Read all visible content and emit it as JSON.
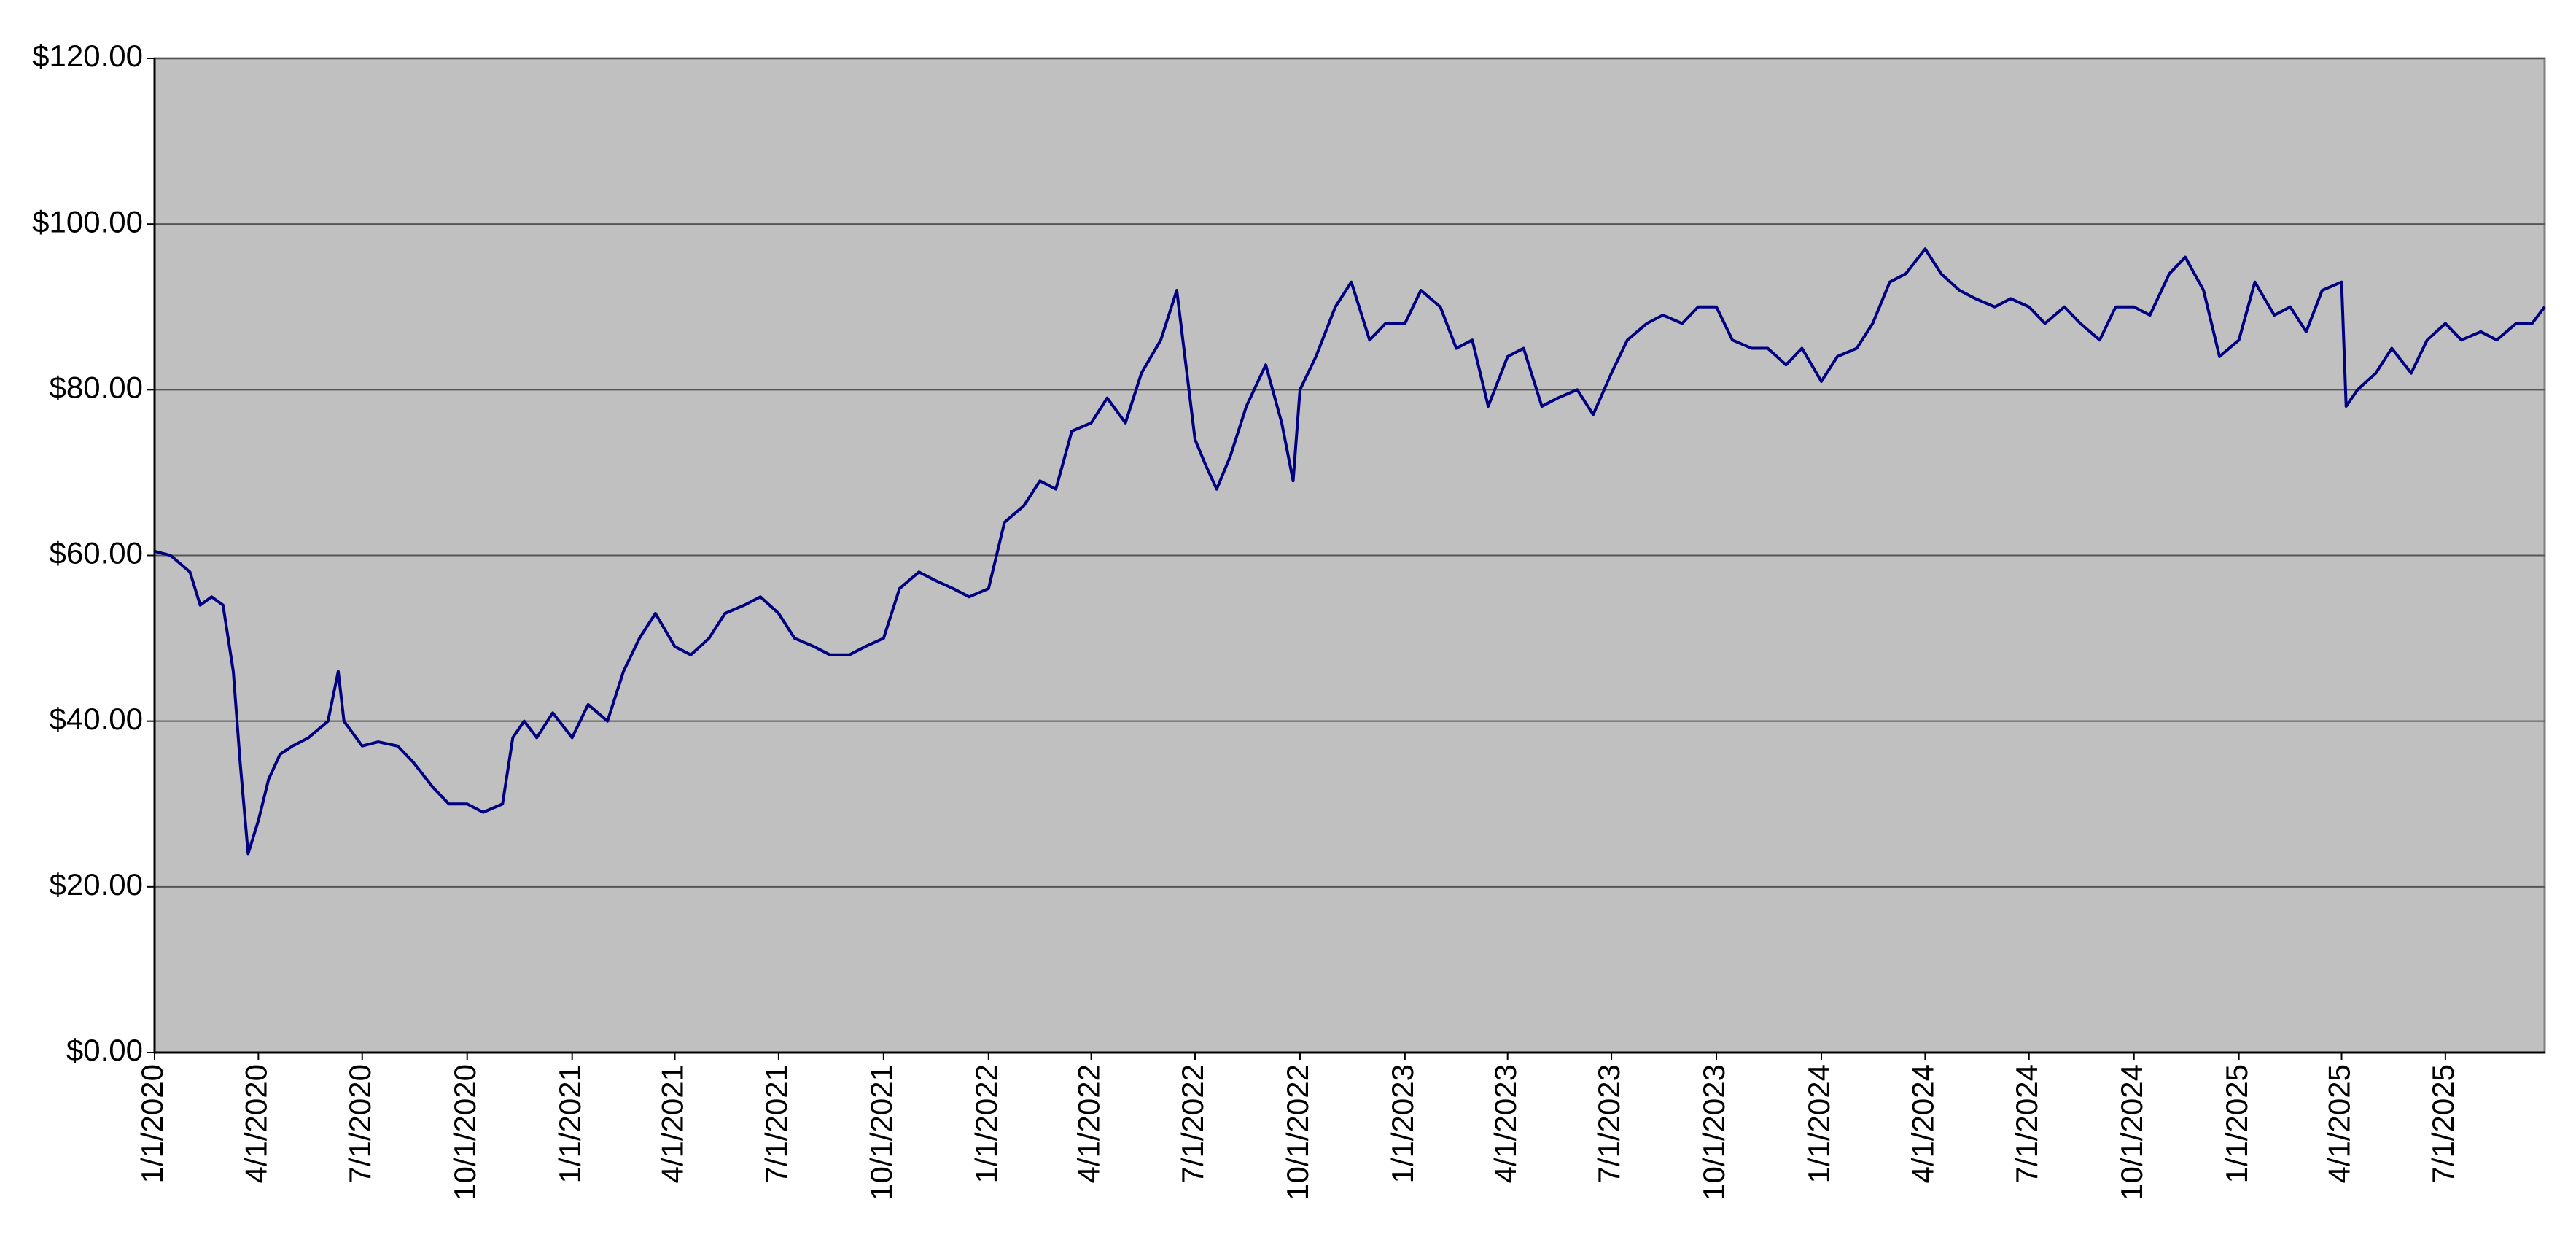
{
  "chart_data": {
    "type": "line",
    "x": [
      "1/1/2020",
      "1/15/2020",
      "2/1/2020",
      "2/10/2020",
      "2/20/2020",
      "3/1/2020",
      "3/10/2020",
      "3/16/2020",
      "3/23/2020",
      "4/1/2020",
      "4/10/2020",
      "4/20/2020",
      "5/1/2020",
      "5/15/2020",
      "6/1/2020",
      "6/10/2020",
      "6/15/2020",
      "7/1/2020",
      "7/15/2020",
      "8/1/2020",
      "8/15/2020",
      "9/1/2020",
      "9/15/2020",
      "10/1/2020",
      "10/15/2020",
      "11/1/2020",
      "11/10/2020",
      "11/20/2020",
      "12/1/2020",
      "12/15/2020",
      "1/1/2021",
      "1/15/2021",
      "2/1/2021",
      "2/15/2021",
      "3/1/2021",
      "3/15/2021",
      "4/1/2021",
      "4/15/2021",
      "5/1/2021",
      "5/15/2021",
      "6/1/2021",
      "6/15/2021",
      "7/1/2021",
      "7/15/2021",
      "8/1/2021",
      "8/15/2021",
      "9/1/2021",
      "9/15/2021",
      "10/1/2021",
      "10/15/2021",
      "11/1/2021",
      "11/15/2021",
      "12/1/2021",
      "12/15/2021",
      "1/1/2022",
      "1/15/2022",
      "2/1/2022",
      "2/15/2022",
      "3/1/2022",
      "3/15/2022",
      "4/1/2022",
      "4/15/2022",
      "5/1/2022",
      "5/15/2022",
      "6/1/2022",
      "6/15/2022",
      "7/1/2022",
      "7/10/2022",
      "7/20/2022",
      "8/1/2022",
      "8/15/2022",
      "9/1/2022",
      "9/15/2022",
      "9/25/2022",
      "10/1/2022",
      "10/15/2022",
      "11/1/2022",
      "11/15/2022",
      "12/1/2022",
      "12/15/2022",
      "1/1/2023",
      "1/15/2023",
      "2/1/2023",
      "2/15/2023",
      "3/1/2023",
      "3/15/2023",
      "4/1/2023",
      "4/15/2023",
      "5/1/2023",
      "5/15/2023",
      "6/1/2023",
      "6/15/2023",
      "7/1/2023",
      "7/15/2023",
      "8/1/2023",
      "8/15/2023",
      "9/1/2023",
      "9/15/2023",
      "10/1/2023",
      "10/15/2023",
      "11/1/2023",
      "11/15/2023",
      "12/1/2023",
      "12/15/2023",
      "1/1/2024",
      "1/15/2024",
      "2/1/2024",
      "2/15/2024",
      "3/1/2024",
      "3/15/2024",
      "4/1/2024",
      "4/15/2024",
      "5/1/2024",
      "5/15/2024",
      "6/1/2024",
      "6/15/2024",
      "7/1/2024",
      "7/15/2024",
      "8/1/2024",
      "8/15/2024",
      "9/1/2024",
      "9/15/2024",
      "10/1/2024",
      "10/15/2024",
      "11/1/2024",
      "11/15/2024",
      "12/1/2024",
      "12/15/2024",
      "1/1/2025",
      "1/15/2025",
      "2/1/2025",
      "2/15/2025",
      "3/1/2025",
      "3/15/2025",
      "4/1/2025",
      "4/5/2025",
      "4/15/2025",
      "5/1/2025",
      "5/15/2025",
      "6/1/2025",
      "6/15/2025",
      "7/1/2025",
      "7/15/2025",
      "8/1/2025",
      "8/15/2025",
      "9/1/2025",
      "9/15/2025",
      "9/26/2025"
    ],
    "series": [
      {
        "color": "#000080",
        "values": [
          60.5,
          60,
          58,
          54,
          55,
          54,
          46,
          35,
          24,
          28,
          33,
          36,
          37,
          38,
          40,
          46,
          40,
          37,
          37.5,
          37,
          35,
          32,
          30,
          30,
          29,
          30,
          38,
          40,
          38,
          41,
          38,
          42,
          40,
          46,
          50,
          53,
          49,
          48,
          50,
          53,
          54,
          55,
          53,
          50,
          49,
          48,
          48,
          49,
          50,
          56,
          58,
          57,
          56,
          55,
          56,
          64,
          66,
          69,
          68,
          75,
          76,
          79,
          76,
          82,
          86,
          92,
          74,
          71,
          68,
          72,
          78,
          83,
          76,
          69,
          80,
          84,
          90,
          93,
          86,
          88,
          88,
          92,
          90,
          85,
          86,
          78,
          84,
          85,
          78,
          79,
          80,
          77,
          82,
          86,
          88,
          89,
          88,
          90,
          90,
          86,
          85,
          85,
          83,
          85,
          81,
          84,
          85,
          88,
          93,
          94,
          97,
          94,
          92,
          91,
          90,
          91,
          90,
          88,
          90,
          88,
          86,
          90,
          90,
          89,
          94,
          96,
          92,
          84,
          86,
          93,
          89,
          90,
          87,
          92,
          93,
          78,
          80,
          82,
          85,
          82,
          86,
          88,
          86,
          87,
          86,
          88,
          88,
          90
        ]
      }
    ],
    "xlim": [
      "1/1/2020",
      "9/26/2025"
    ],
    "xticks": [
      "1/1/2020",
      "4/1/2020",
      "7/1/2020",
      "10/1/2020",
      "1/1/2021",
      "4/1/2021",
      "7/1/2021",
      "10/1/2021",
      "1/1/2022",
      "4/1/2022",
      "7/1/2022",
      "10/1/2022",
      "1/1/2023",
      "4/1/2023",
      "7/1/2023",
      "10/1/2023",
      "1/1/2024",
      "4/1/2024",
      "7/1/2024",
      "10/1/2024",
      "1/1/2025",
      "4/1/2025",
      "7/1/2025"
    ],
    "ylim": [
      0,
      120
    ],
    "yticks": [
      {
        "value": 0,
        "label": "$0.00"
      },
      {
        "value": 20,
        "label": "$20.00"
      },
      {
        "value": 40,
        "label": "$40.00"
      },
      {
        "value": 60,
        "label": "$60.00"
      },
      {
        "value": 80,
        "label": "$80.00"
      },
      {
        "value": 100,
        "label": "$100.00"
      },
      {
        "value": 120,
        "label": "$120.00"
      }
    ],
    "grid": true,
    "background": "#c0c0c0"
  }
}
